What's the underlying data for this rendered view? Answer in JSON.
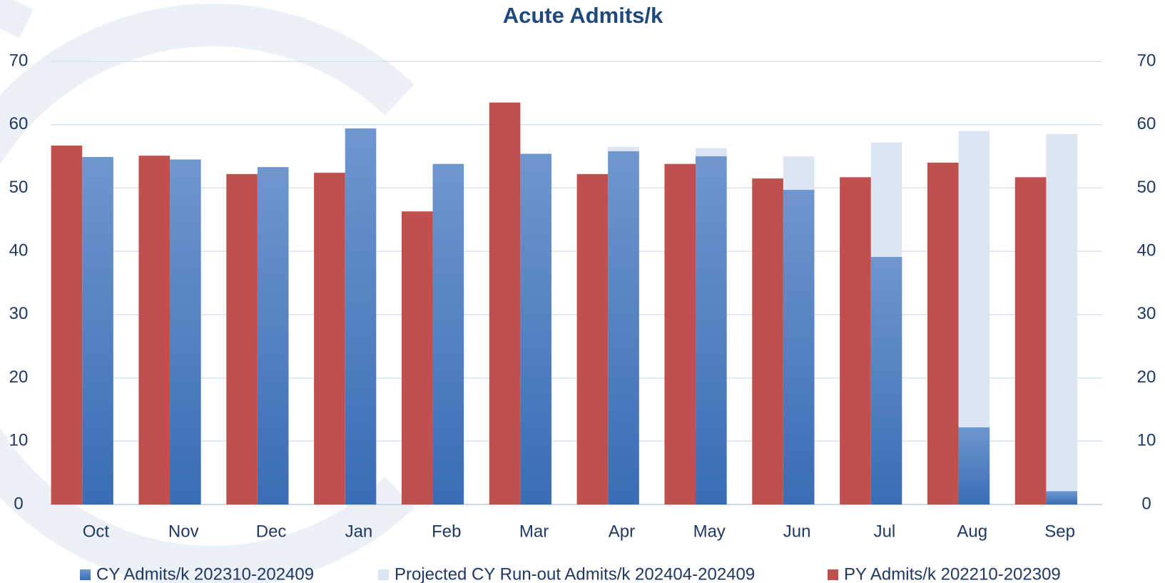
{
  "chart_data": {
    "type": "bar",
    "title": "Acute Admits/k",
    "categories": [
      "Oct",
      "Nov",
      "Dec",
      "Jan",
      "Feb",
      "Mar",
      "Apr",
      "May",
      "Jun",
      "Jul",
      "Aug",
      "Sep"
    ],
    "series": [
      {
        "name": "CY Admits/k 202310-202409",
        "color": "#4a7cc0",
        "values": [
          54.9,
          54.5,
          53.3,
          59.4,
          53.8,
          55.4,
          55.8,
          55.0,
          49.7,
          39.1,
          12.2,
          2.1
        ]
      },
      {
        "name": "Projected CY Run-out Admits/k 202404-202409",
        "color": "#dce6f2",
        "values": [
          null,
          null,
          null,
          null,
          null,
          null,
          56.5,
          56.3,
          55.0,
          57.2,
          59.0,
          58.5
        ]
      },
      {
        "name": "PY Admits/k 202210-202309",
        "color": "#c0504d",
        "values": [
          56.7,
          55.1,
          52.2,
          52.4,
          46.3,
          63.5,
          52.2,
          53.8,
          51.5,
          51.7,
          54.0,
          51.7
        ]
      }
    ],
    "ylim": [
      0,
      70
    ],
    "yticks": [
      0,
      10,
      20,
      30,
      40,
      50,
      60,
      70
    ],
    "y2lim": [
      0,
      70
    ],
    "y2ticks": [
      0,
      10,
      20,
      30,
      40,
      50,
      60,
      70
    ],
    "grid": true,
    "legend": "bottom"
  }
}
